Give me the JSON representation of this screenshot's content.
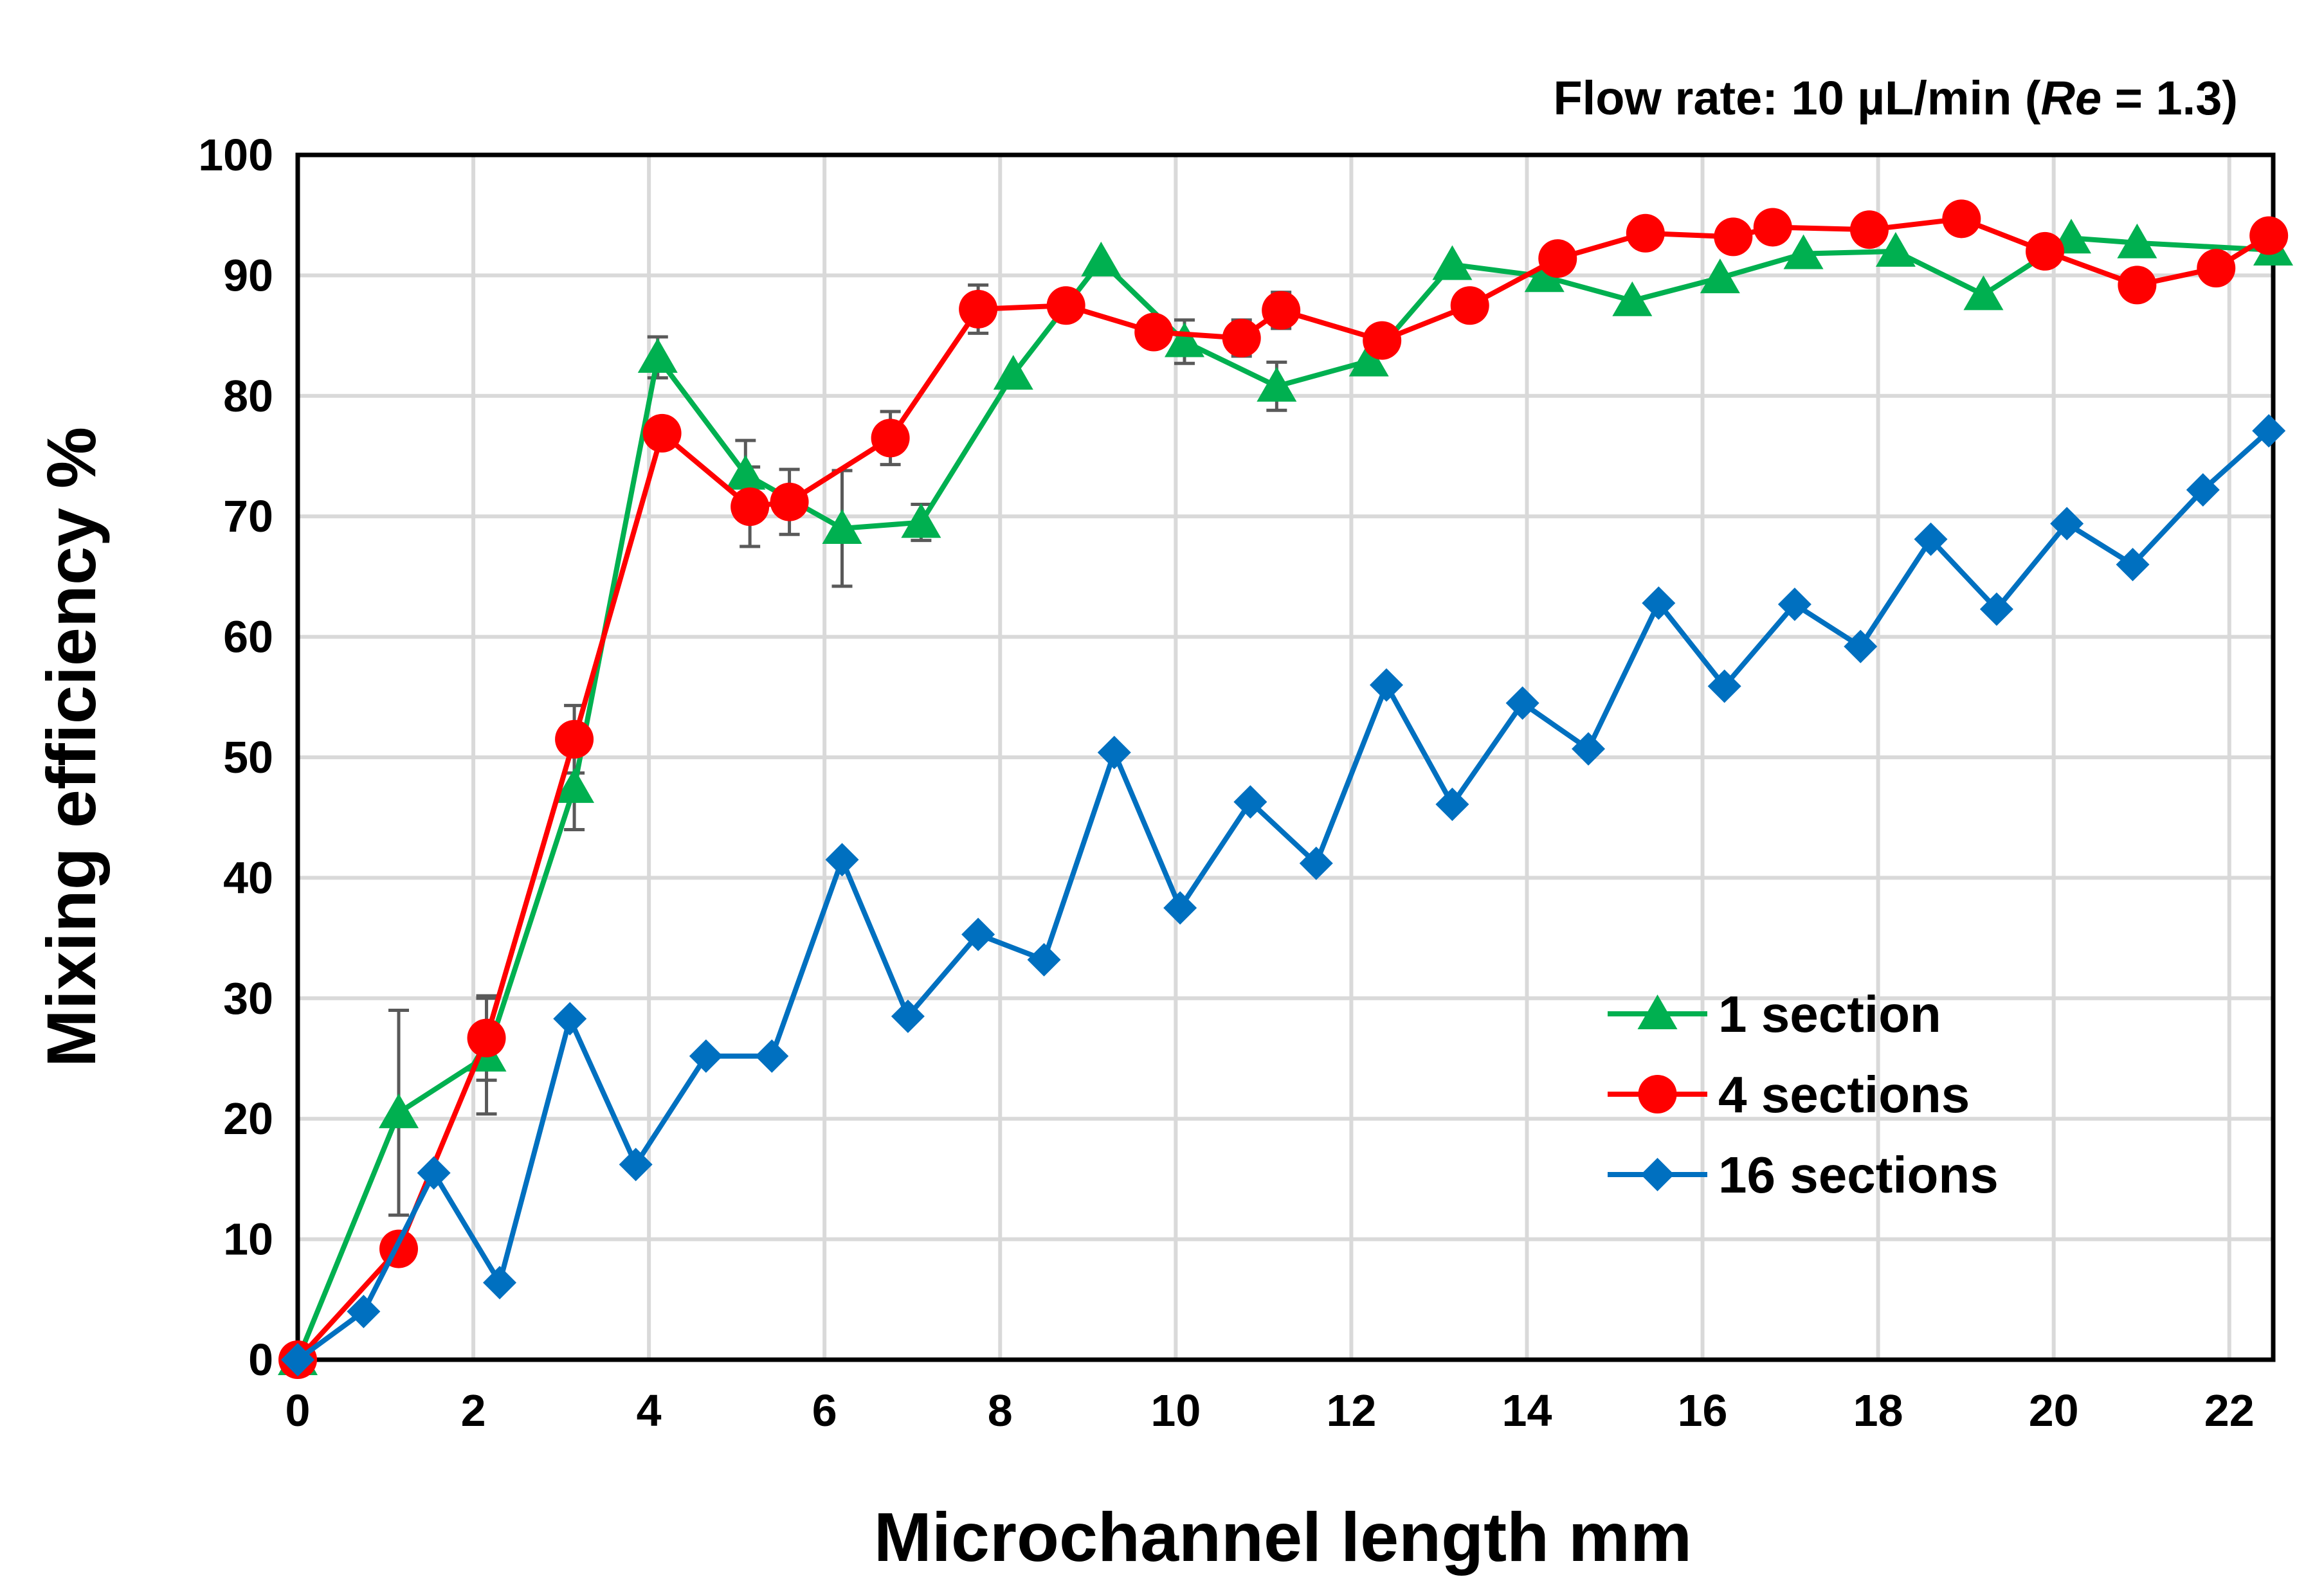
{
  "chart_data": {
    "type": "line",
    "annotation": {
      "prefix": "Flow rate: 10 µL/min (",
      "re_symbol": "Re",
      "suffix": " = 1.3)"
    },
    "xlabel": "Microchannel length  mm",
    "ylabel": "Mixing efficiency  %",
    "xlim": [
      0,
      22.5
    ],
    "ylim": [
      0,
      100
    ],
    "xticks": [
      0,
      2,
      4,
      6,
      8,
      10,
      12,
      14,
      16,
      18,
      20,
      22
    ],
    "yticks": [
      0,
      10,
      20,
      30,
      40,
      50,
      60,
      70,
      80,
      90,
      100
    ],
    "grid": true,
    "legend_position": "bottom-right",
    "series": [
      {
        "name": "1 section",
        "color": "#00b050",
        "marker": "triangle",
        "x": [
          0,
          1.15,
          2.15,
          3.15,
          4.1,
          5.1,
          6.2,
          7.1,
          8.15,
          9.15,
          10.1,
          11.15,
          12.2,
          13.15,
          14.2,
          15.2,
          16.2,
          17.15,
          18.2,
          19.2,
          20.2,
          20.95,
          22.5
        ],
        "y": [
          0,
          20.5,
          25.2,
          47.5,
          83.2,
          73.5,
          69.0,
          69.5,
          81.8,
          91.2,
          84.5,
          80.8,
          82.9,
          90.9,
          89.9,
          87.9,
          89.8,
          91.8,
          92.0,
          88.4,
          93.1,
          92.7,
          92.1
        ],
        "error": [
          0,
          8.5,
          4.8,
          3.5,
          1.7,
          2.8,
          4.8,
          1.5,
          0,
          0,
          1.8,
          2.0,
          0,
          0,
          0,
          0,
          0,
          0,
          0,
          0,
          0,
          0,
          0
        ]
      },
      {
        "name": "4 sections",
        "color": "#ff0000",
        "marker": "circle",
        "x": [
          0,
          1.15,
          2.15,
          3.15,
          4.15,
          5.15,
          5.6,
          6.75,
          7.75,
          8.75,
          9.75,
          10.75,
          11.2,
          12.35,
          13.35,
          14.35,
          15.35,
          16.35,
          16.8,
          17.9,
          18.95,
          19.9,
          20.95,
          21.85,
          22.45
        ],
        "y": [
          0,
          9.2,
          26.7,
          51.5,
          76.9,
          70.8,
          71.2,
          76.5,
          87.2,
          87.5,
          85.3,
          84.8,
          87.1,
          84.6,
          87.5,
          91.4,
          93.5,
          93.2,
          94.0,
          93.8,
          94.7,
          92.0,
          89.2,
          90.6,
          93.3
        ],
        "error": [
          0,
          0,
          3.5,
          2.8,
          0,
          3.3,
          2.7,
          2.2,
          2.0,
          0,
          0,
          1.5,
          1.5,
          0,
          0,
          0,
          0,
          0,
          0,
          0,
          0,
          0,
          0,
          0,
          0
        ]
      },
      {
        "name": "16 sections",
        "color": "#0070c0",
        "marker": "diamond",
        "x": [
          0,
          0.75,
          1.55,
          2.3,
          3.1,
          3.85,
          4.65,
          5.4,
          6.2,
          6.95,
          7.75,
          8.5,
          9.3,
          10.05,
          10.85,
          11.6,
          12.4,
          13.15,
          13.95,
          14.7,
          15.5,
          16.25,
          17.05,
          17.8,
          18.6,
          19.35,
          20.15,
          20.9,
          21.7,
          22.45
        ],
        "y": [
          0,
          4.0,
          15.5,
          6.4,
          28.3,
          16.2,
          25.2,
          25.2,
          41.5,
          28.5,
          35.3,
          33.2,
          50.4,
          37.5,
          46.3,
          41.2,
          56.0,
          46.1,
          54.5,
          50.7,
          62.8,
          55.9,
          62.7,
          59.2,
          68.1,
          62.3,
          69.4,
          66.0,
          72.2,
          77.1
        ],
        "error": []
      }
    ]
  }
}
